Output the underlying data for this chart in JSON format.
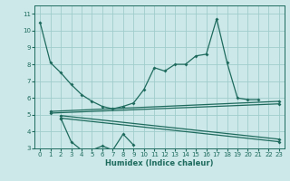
{
  "bg_color": "#cce8e8",
  "line_color": "#1e6b5e",
  "grid_color": "#a0cccc",
  "xlabel": "Humidex (Indice chaleur)",
  "ylim": [
    3,
    11.5
  ],
  "xlim": [
    -0.5,
    23.5
  ],
  "yticks": [
    3,
    4,
    5,
    6,
    7,
    8,
    9,
    10,
    11
  ],
  "xticks": [
    0,
    1,
    2,
    3,
    4,
    5,
    6,
    7,
    8,
    9,
    10,
    11,
    12,
    13,
    14,
    15,
    16,
    17,
    18,
    19,
    20,
    21,
    22,
    23
  ],
  "main_x": [
    0,
    1,
    2,
    3,
    4,
    5,
    6,
    7,
    8,
    9,
    10,
    11,
    12,
    13,
    14,
    15,
    16,
    17,
    18,
    19,
    20,
    21
  ],
  "main_y": [
    10.5,
    8.1,
    7.5,
    6.8,
    6.2,
    5.8,
    5.5,
    5.35,
    5.5,
    5.7,
    6.5,
    7.8,
    7.6,
    8.0,
    8.0,
    8.5,
    8.6,
    10.7,
    8.1,
    6.0,
    5.9,
    5.9
  ],
  "low_x": [
    2,
    3,
    4,
    5,
    6,
    7,
    8,
    9
  ],
  "low_y": [
    4.8,
    3.4,
    2.9,
    2.9,
    3.15,
    2.9,
    3.85,
    3.2
  ],
  "para_lines": [
    {
      "x": [
        1,
        23
      ],
      "y": [
        5.2,
        5.8
      ]
    },
    {
      "x": [
        1,
        23
      ],
      "y": [
        5.1,
        5.65
      ]
    },
    {
      "x": [
        2,
        23
      ],
      "y": [
        5.0,
        3.6
      ]
    },
    {
      "x": [
        2,
        23
      ],
      "y": [
        4.85,
        3.45
      ]
    }
  ]
}
